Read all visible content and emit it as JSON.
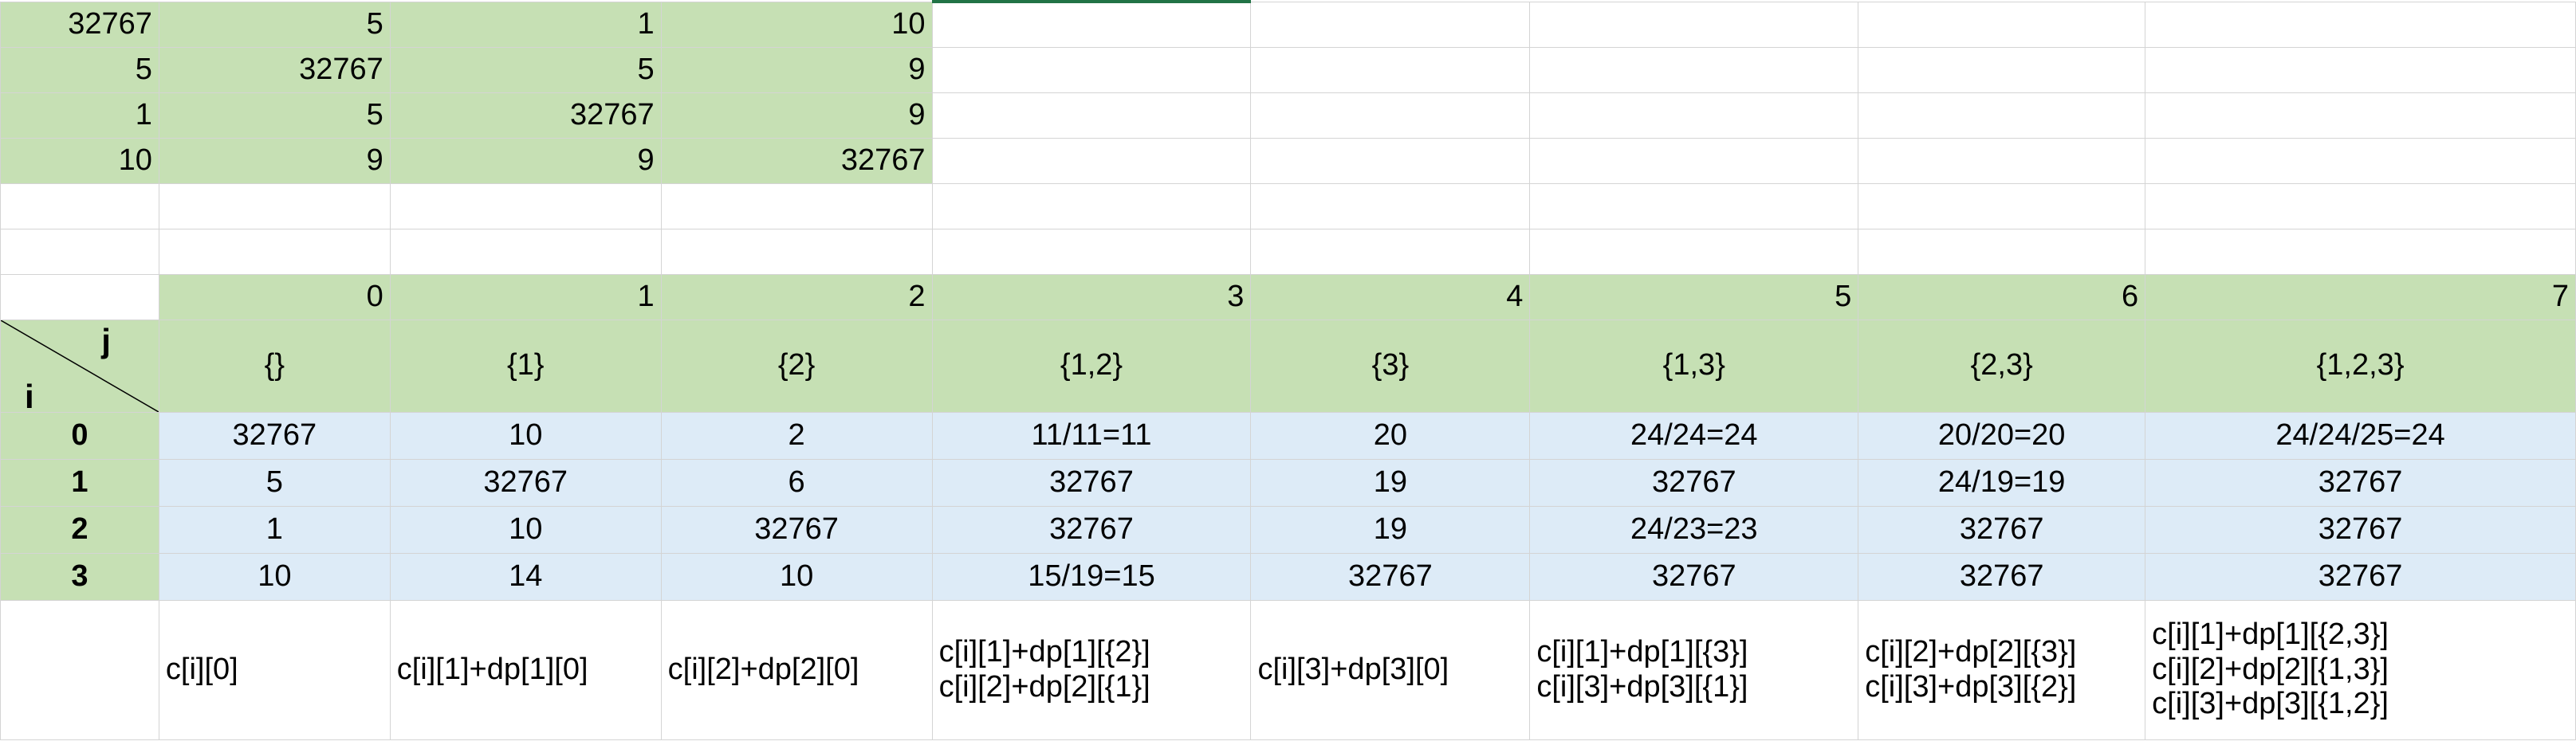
{
  "top_matrix": [
    [
      "32767",
      "5",
      "1",
      "10"
    ],
    [
      "5",
      "32767",
      "5",
      "9"
    ],
    [
      "1",
      "5",
      "32767",
      "9"
    ],
    [
      "10",
      "9",
      "9",
      "32767"
    ]
  ],
  "column_index": [
    "0",
    "1",
    "2",
    "3",
    "4",
    "5",
    "6",
    "7"
  ],
  "header_labels": {
    "j": "j",
    "i": "i"
  },
  "subsets": [
    "{}",
    "{1}",
    "{2}",
    "{1,2}",
    "{3}",
    "{1,3}",
    "{2,3}",
    "{1,2,3}"
  ],
  "dp_rows": [
    {
      "i": "0",
      "cells": [
        "32767",
        "10",
        "2",
        "11/11=11",
        "20",
        "24/24=24",
        "20/20=20",
        "24/24/25=24"
      ]
    },
    {
      "i": "1",
      "cells": [
        "5",
        "32767",
        "6",
        "32767",
        "19",
        "32767",
        "24/19=19",
        "32767"
      ]
    },
    {
      "i": "2",
      "cells": [
        "1",
        "10",
        "32767",
        "32767",
        "19",
        "24/23=23",
        "32767",
        "32767"
      ]
    },
    {
      "i": "3",
      "cells": [
        "10",
        "14",
        "10",
        "15/19=15",
        "32767",
        "32767",
        "32767",
        "32767"
      ]
    }
  ],
  "formulas": [
    [
      "c[i][0]"
    ],
    [
      "c[i][1]+dp[1][0]"
    ],
    [
      "c[i][2]+dp[2][0]"
    ],
    [
      "c[i][1]+dp[1][{2}]",
      "c[i][2]+dp[2][{1}]"
    ],
    [
      "c[i][3]+dp[3][0]"
    ],
    [
      "c[i][1]+dp[1][{3}]",
      "c[i][3]+dp[3][{1}]"
    ],
    [
      "c[i][2]+dp[2][{3}]",
      "c[i][3]+dp[3][{2}]"
    ],
    [
      "c[i][1]+dp[1][{2,3}]",
      "c[i][2]+dp[2][{1,3}]",
      "c[i][3]+dp[3][{1,2}]"
    ]
  ]
}
